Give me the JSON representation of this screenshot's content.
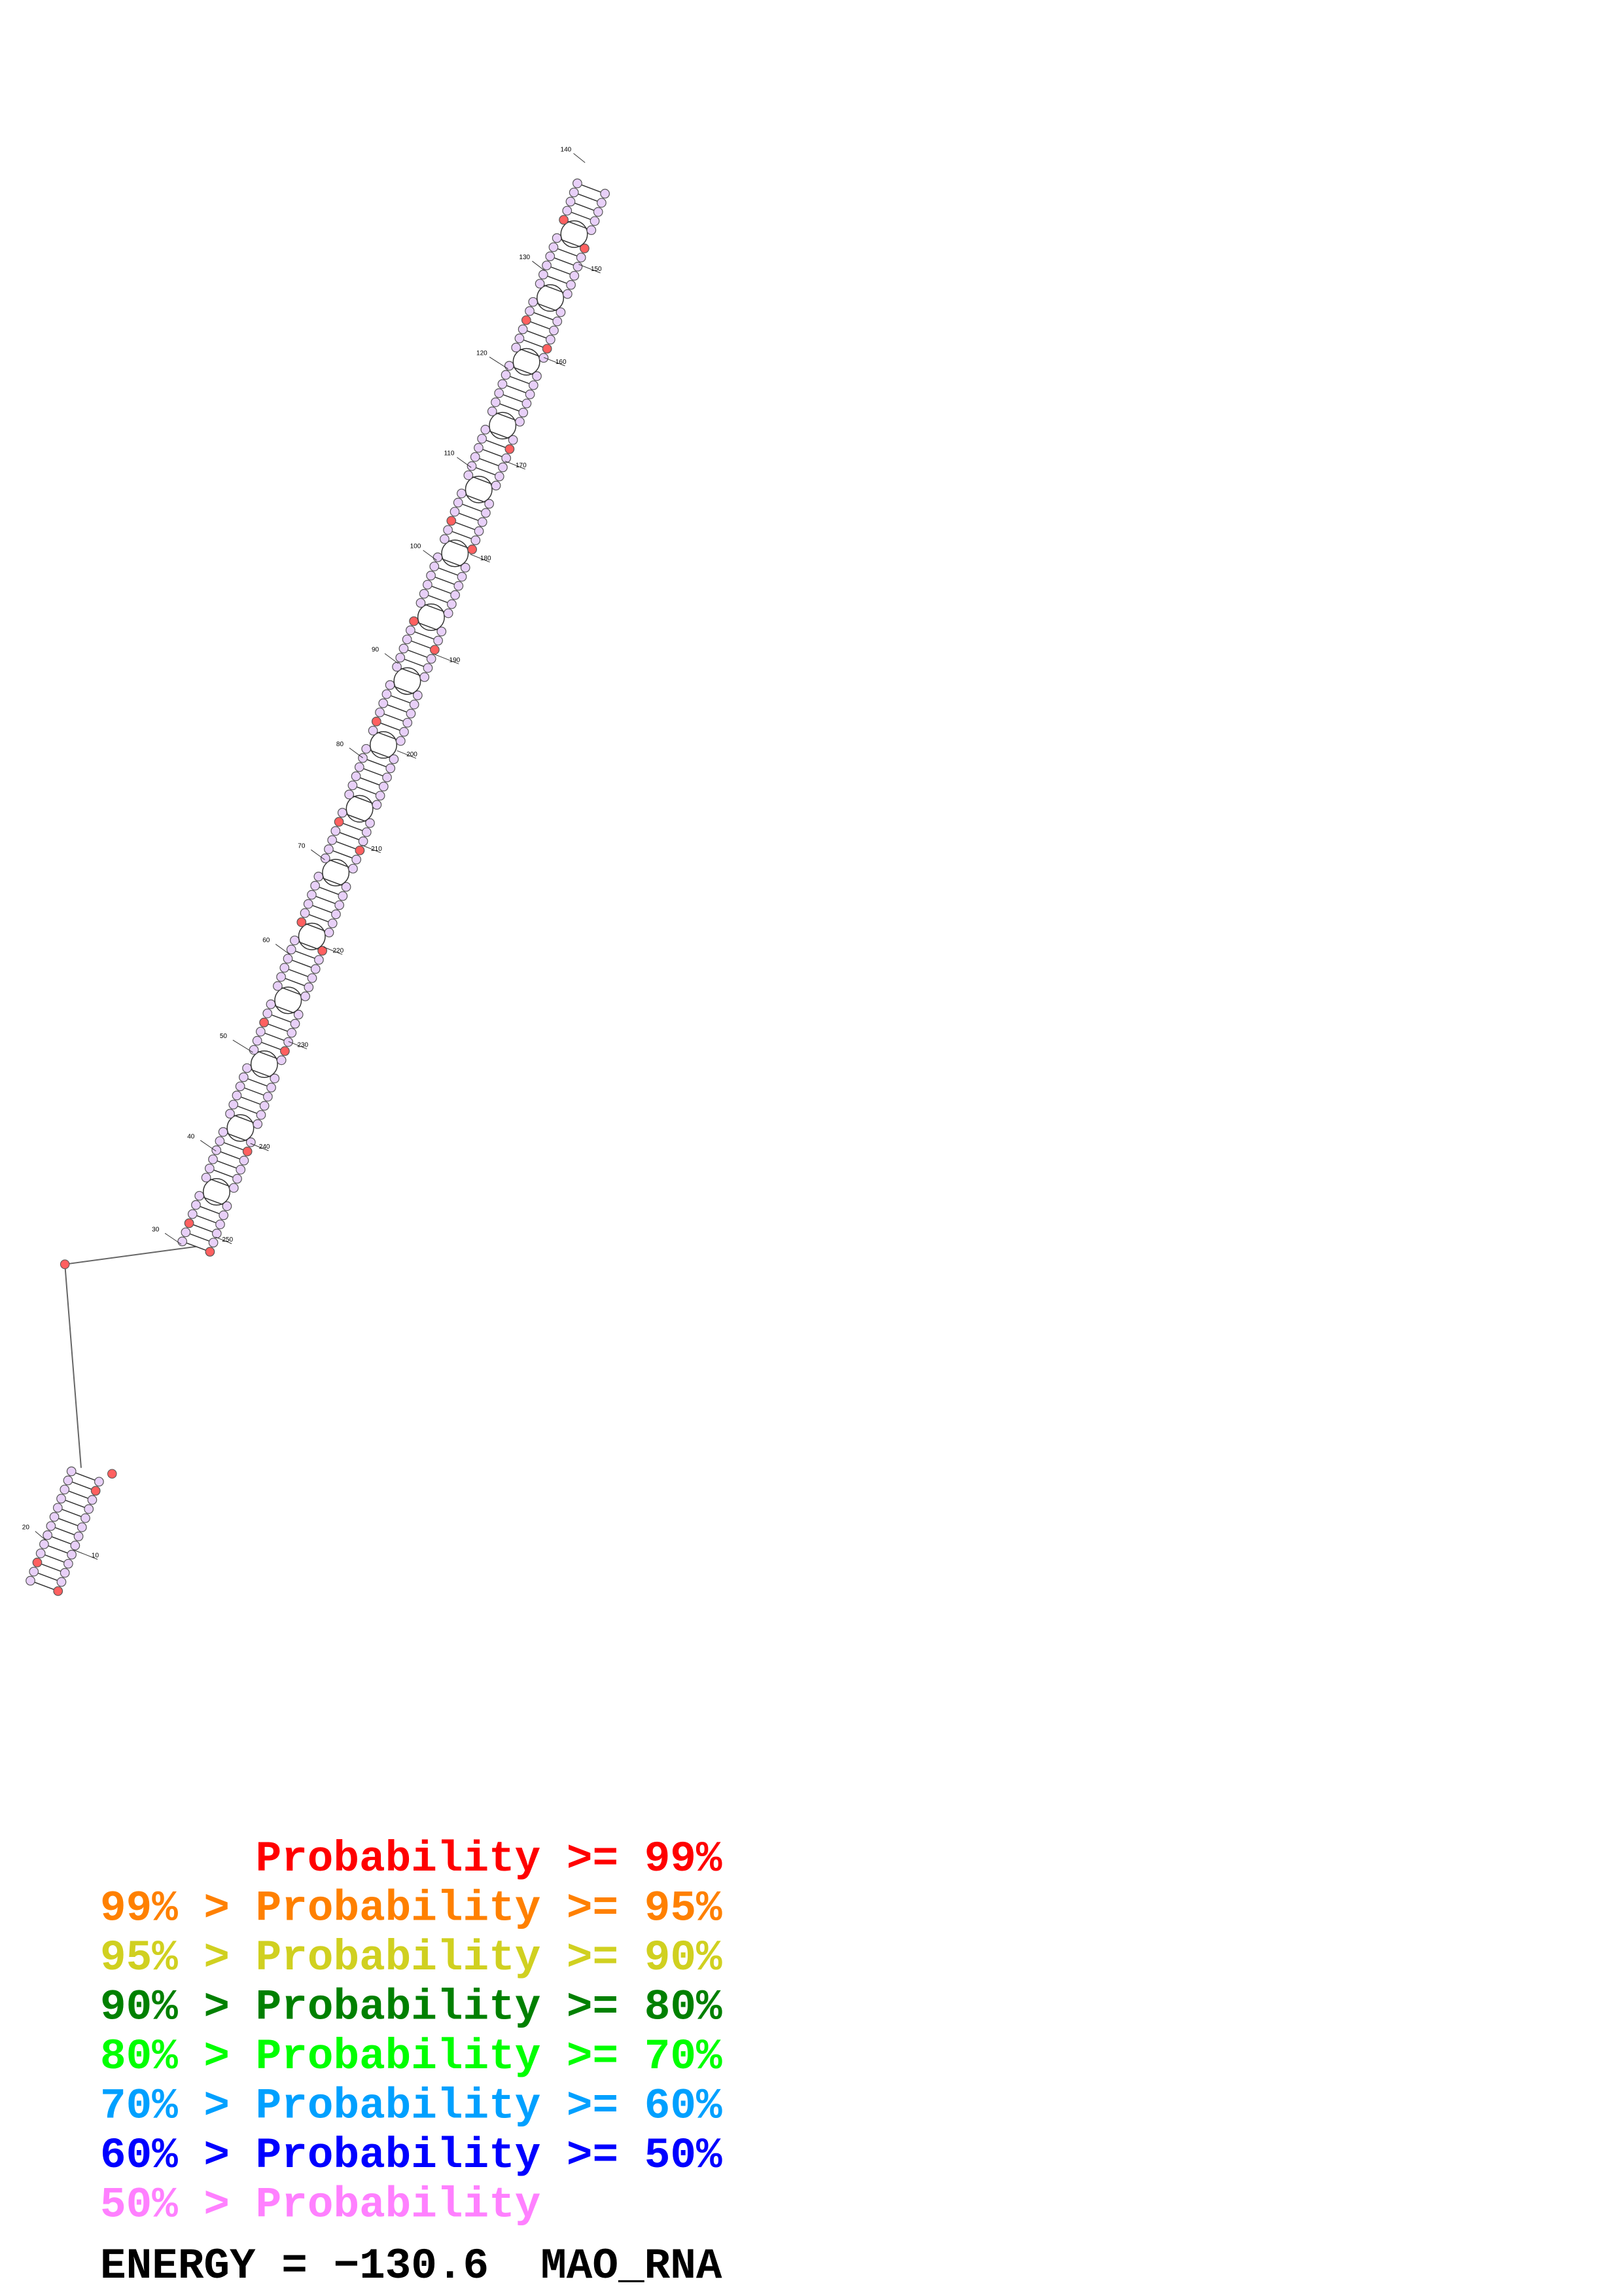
{
  "legend": [
    {
      "text": "Probability >= 99%",
      "color": "#ff0000"
    },
    {
      "text": "99% > Probability >= 95%",
      "color": "#ff8000"
    },
    {
      "text": "95% > Probability >= 90%",
      "color": "#d0d020"
    },
    {
      "text": "90% > Probability >= 80%",
      "color": "#008000"
    },
    {
      "text": "80% > Probability >= 70%",
      "color": "#00ff00"
    },
    {
      "text": "70% > Probability >= 60%",
      "color": "#00a0ff"
    },
    {
      "text": "60% > Probability >= 50%",
      "color": "#0000ff"
    },
    {
      "text": "50% > Probability",
      "color": "#ff80ff"
    }
  ],
  "energy": "ENERGY = −130.6",
  "sequence_name": "MAO_RNA",
  "position_labels": [
    10,
    20,
    30,
    40,
    50,
    60,
    70,
    80,
    90,
    100,
    110,
    120,
    130,
    140,
    150,
    160,
    170,
    180,
    190,
    200,
    210,
    220,
    230,
    240,
    250
  ]
}
